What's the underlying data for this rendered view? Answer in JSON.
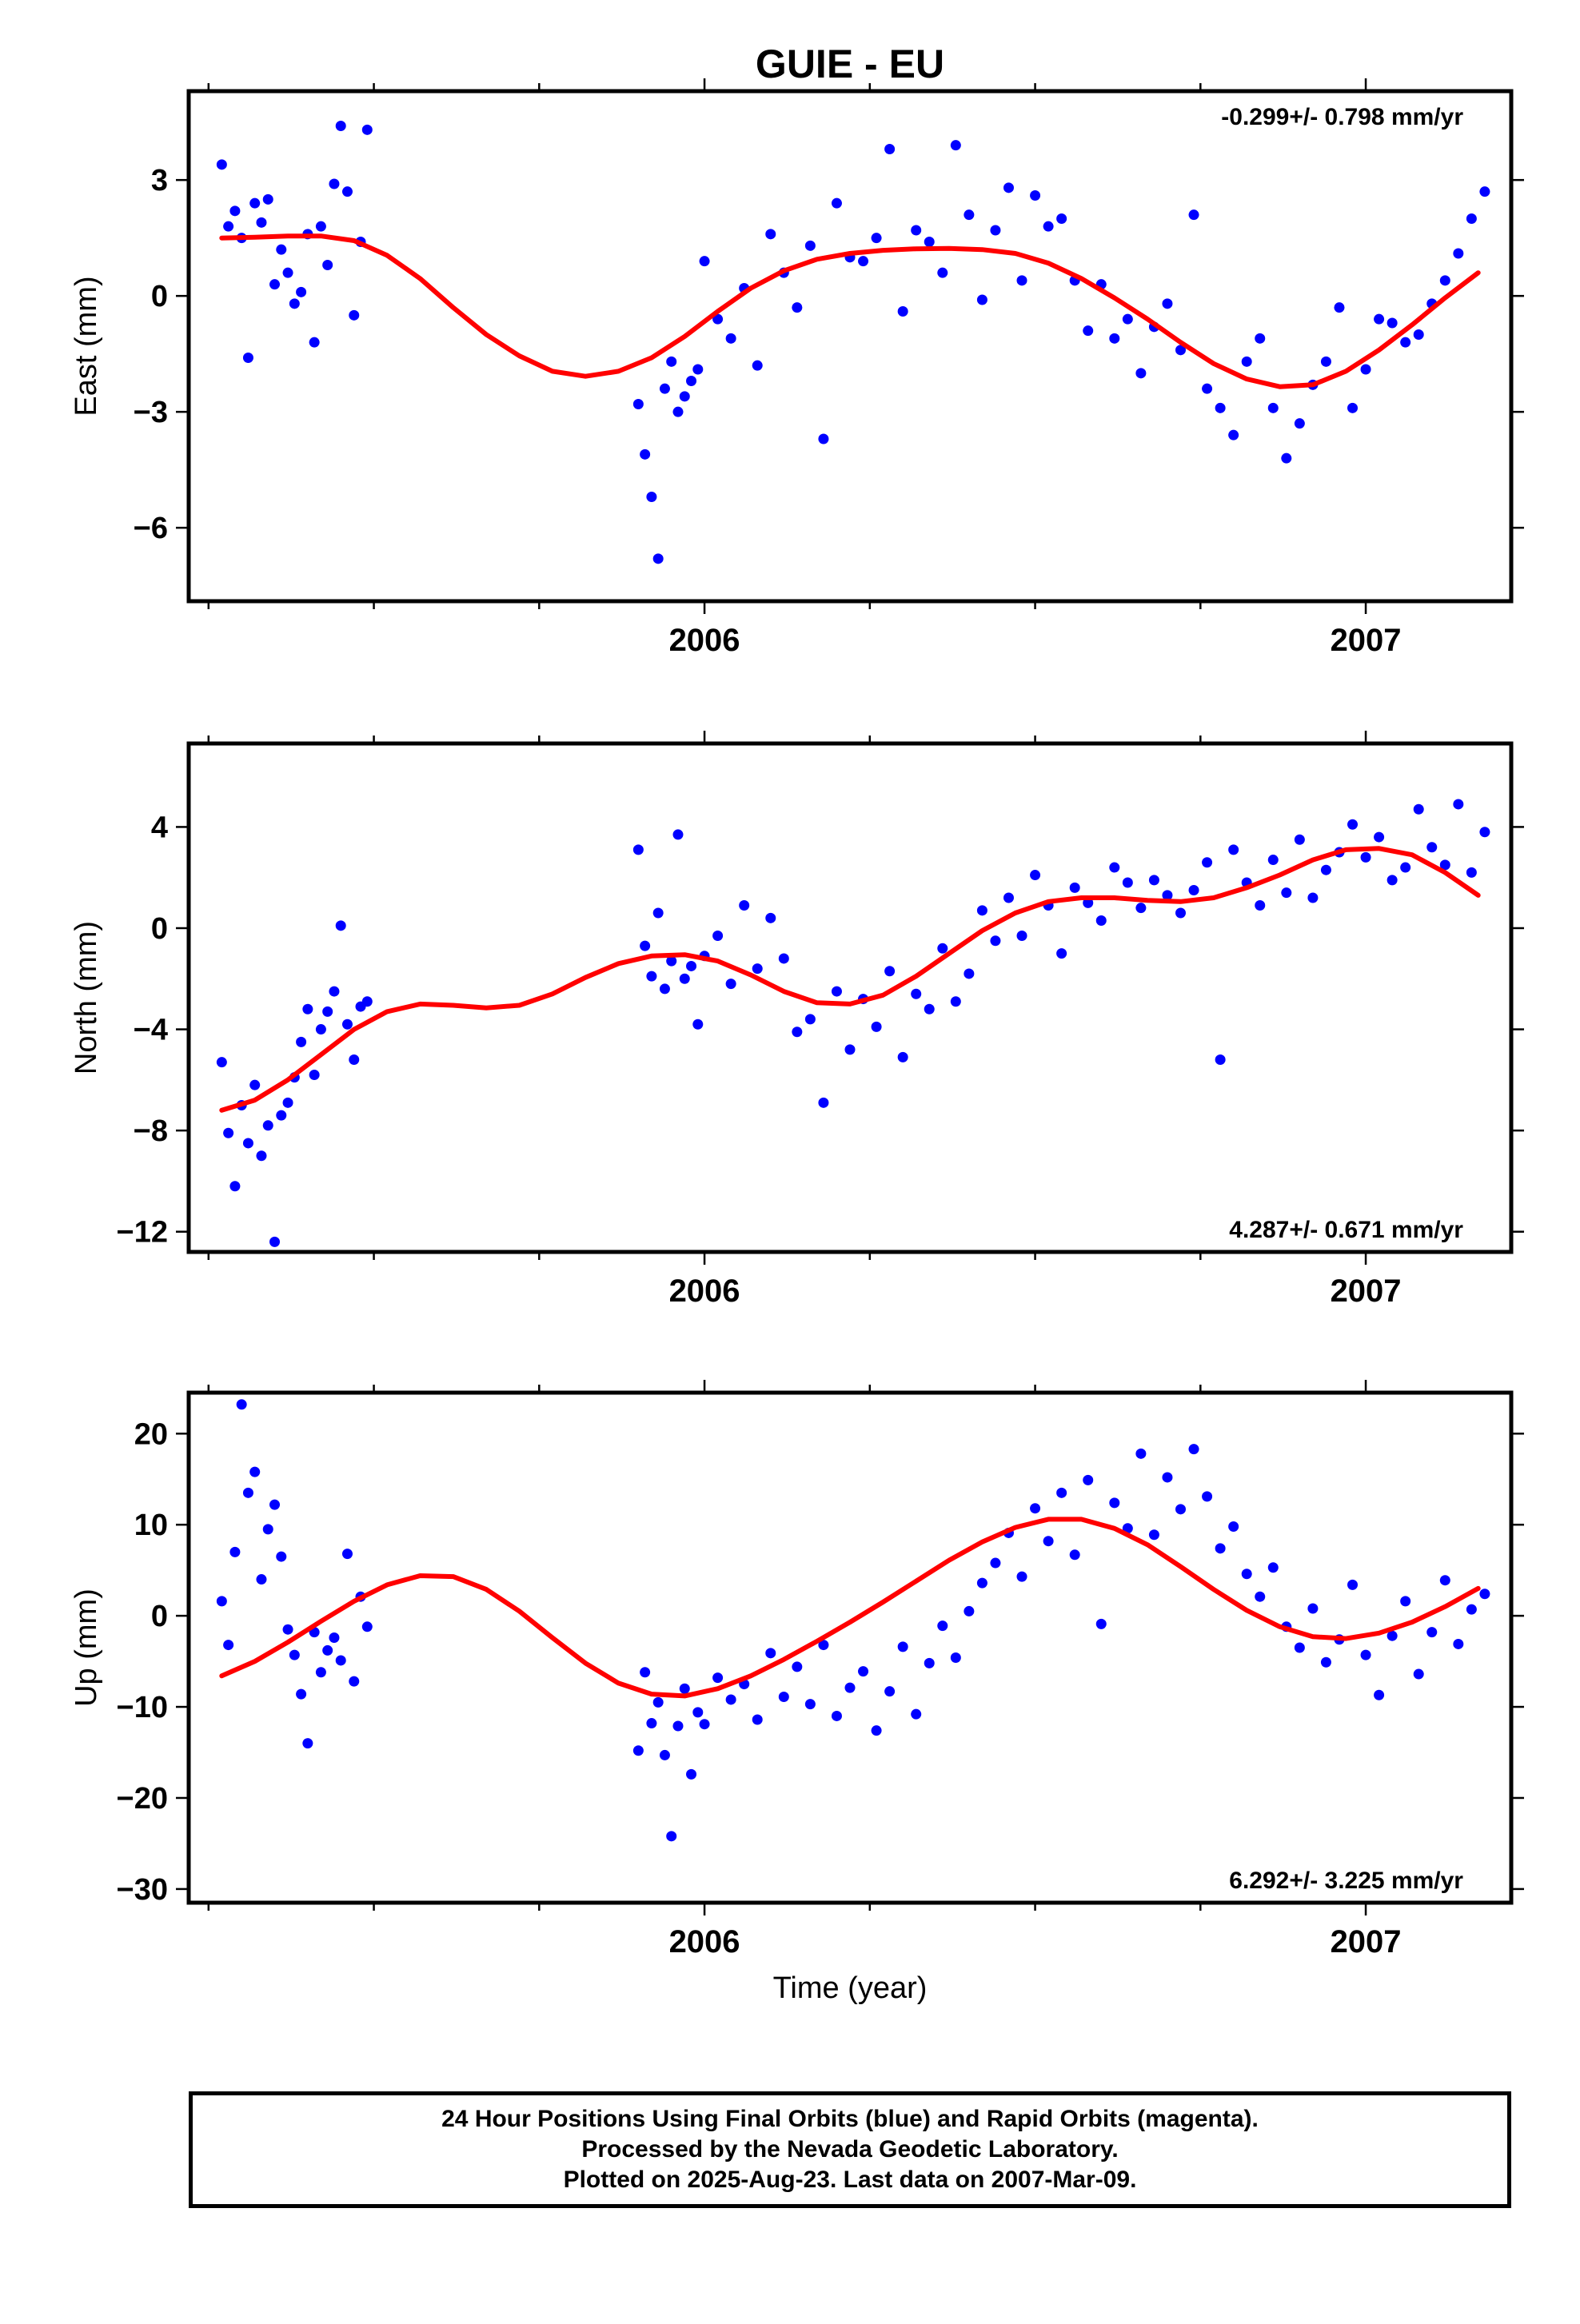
{
  "figure": {
    "title": "GUIE - EU",
    "xlabel": "Time (year)"
  },
  "footer": {
    "line1": "24 Hour Positions Using Final Orbits (blue) and Rapid Orbits (magenta).",
    "line2": "Processed by the Nevada Geodetic Laboratory.",
    "line3": "Plotted on 2025-Aug-23. Last data on 2007-Mar-09."
  },
  "colors": {
    "points": "#0000ff",
    "fit": "#ff0000",
    "axes": "#000000"
  },
  "chart_data": [
    {
      "type": "scatter",
      "panel": "east",
      "ylabel": "East (mm)",
      "rate_label": "-0.299+/- 0.798 mm/yr",
      "xlim": [
        2005.22,
        2007.22
      ],
      "ylim": [
        -7.9,
        5.3
      ],
      "yticks": [
        3,
        0,
        -3,
        -6
      ],
      "ytick_labels": [
        "3",
        "0",
        "−3",
        "−6"
      ],
      "xticks": [
        2006,
        2007
      ],
      "xtick_labels": [
        "2006",
        "2007"
      ],
      "series": [
        {
          "role": "daily positions (final orbits)",
          "x": [
            2005.27,
            2005.28,
            2005.29,
            2005.3,
            2005.31,
            2005.32,
            2005.33,
            2005.34,
            2005.35,
            2005.36,
            2005.37,
            2005.38,
            2005.39,
            2005.4,
            2005.41,
            2005.42,
            2005.43,
            2005.44,
            2005.45,
            2005.46,
            2005.47,
            2005.48,
            2005.49,
            2005.9,
            2005.91,
            2005.92,
            2005.93,
            2005.94,
            2005.95,
            2005.96,
            2005.97,
            2005.98,
            2005.99,
            2006.0,
            2006.02,
            2006.04,
            2006.06,
            2006.08,
            2006.1,
            2006.12,
            2006.14,
            2006.16,
            2006.18,
            2006.2,
            2006.22,
            2006.24,
            2006.26,
            2006.28,
            2006.3,
            2006.32,
            2006.34,
            2006.36,
            2006.38,
            2006.4,
            2006.42,
            2006.44,
            2006.46,
            2006.48,
            2006.5,
            2006.52,
            2006.54,
            2006.56,
            2006.58,
            2006.6,
            2006.62,
            2006.64,
            2006.66,
            2006.68,
            2006.7,
            2006.72,
            2006.74,
            2006.76,
            2006.78,
            2006.8,
            2006.82,
            2006.84,
            2006.86,
            2006.88,
            2006.9,
            2006.92,
            2006.94,
            2006.96,
            2006.98,
            2007.0,
            2007.02,
            2007.04,
            2007.06,
            2007.08,
            2007.1,
            2007.12,
            2007.14,
            2007.16,
            2007.18
          ],
          "y": [
            3.4,
            1.8,
            2.2,
            1.5,
            -1.6,
            2.4,
            1.9,
            2.5,
            0.3,
            1.2,
            0.6,
            -0.2,
            0.1,
            1.6,
            -1.2,
            1.8,
            0.8,
            2.9,
            4.4,
            2.7,
            -0.5,
            1.4,
            4.3,
            -2.8,
            -4.1,
            -5.2,
            -6.8,
            -2.4,
            -1.7,
            -3.0,
            -2.6,
            -2.2,
            -1.9,
            0.9,
            -0.6,
            -1.1,
            0.2,
            -1.8,
            1.6,
            0.6,
            -0.3,
            1.3,
            -3.7,
            2.4,
            1.0,
            0.9,
            1.5,
            3.8,
            -0.4,
            1.7,
            1.4,
            0.6,
            3.9,
            2.1,
            -0.1,
            1.7,
            2.8,
            0.4,
            2.6,
            1.8,
            2.0,
            0.4,
            -0.9,
            0.3,
            -1.1,
            -0.6,
            -2.0,
            -0.8,
            -0.2,
            -1.4,
            2.1,
            -2.4,
            -2.9,
            -3.6,
            -1.7,
            -1.1,
            -2.9,
            -4.2,
            -3.3,
            -2.3,
            -1.7,
            -0.3,
            -2.9,
            -1.9,
            -0.6,
            -0.7,
            -1.2,
            -1.0,
            -0.2,
            0.4,
            1.1,
            2.0,
            2.7
          ]
        },
        {
          "role": "fitted trend",
          "x": [
            2005.27,
            2005.32,
            2005.37,
            2005.42,
            2005.47,
            2005.52,
            2005.57,
            2005.62,
            2005.67,
            2005.72,
            2005.77,
            2005.82,
            2005.87,
            2005.92,
            2005.97,
            2006.02,
            2006.07,
            2006.12,
            2006.17,
            2006.22,
            2006.27,
            2006.32,
            2006.37,
            2006.42,
            2006.47,
            2006.52,
            2006.57,
            2006.62,
            2006.67,
            2006.72,
            2006.77,
            2006.82,
            2006.87,
            2006.92,
            2006.97,
            2007.02,
            2007.07,
            2007.12,
            2007.17
          ],
          "y": [
            1.5,
            1.52,
            1.55,
            1.55,
            1.43,
            1.05,
            0.45,
            -0.3,
            -1.0,
            -1.55,
            -1.95,
            -2.08,
            -1.95,
            -1.6,
            -1.05,
            -0.4,
            0.2,
            0.65,
            0.95,
            1.1,
            1.18,
            1.22,
            1.23,
            1.2,
            1.1,
            0.85,
            0.45,
            -0.05,
            -0.6,
            -1.2,
            -1.75,
            -2.15,
            -2.35,
            -2.3,
            -1.95,
            -1.4,
            -0.75,
            -0.05,
            0.6
          ]
        }
      ]
    },
    {
      "type": "scatter",
      "panel": "north",
      "ylabel": "North (mm)",
      "rate_label": "4.287+/- 0.671 mm/yr",
      "xlim": [
        2005.22,
        2007.22
      ],
      "ylim": [
        -12.8,
        7.3
      ],
      "yticks": [
        4,
        0,
        -4,
        -8,
        -12
      ],
      "ytick_labels": [
        "4",
        "0",
        "−4",
        "−8",
        "−12"
      ],
      "xticks": [
        2006,
        2007
      ],
      "xtick_labels": [
        "2006",
        "2007"
      ],
      "series": [
        {
          "role": "daily positions (final orbits)",
          "x": [
            2005.27,
            2005.28,
            2005.29,
            2005.3,
            2005.31,
            2005.32,
            2005.33,
            2005.34,
            2005.35,
            2005.36,
            2005.37,
            2005.38,
            2005.39,
            2005.4,
            2005.41,
            2005.42,
            2005.43,
            2005.44,
            2005.45,
            2005.46,
            2005.47,
            2005.48,
            2005.49,
            2005.9,
            2005.91,
            2005.92,
            2005.93,
            2005.94,
            2005.95,
            2005.96,
            2005.97,
            2005.98,
            2005.99,
            2006.0,
            2006.02,
            2006.04,
            2006.06,
            2006.08,
            2006.1,
            2006.12,
            2006.14,
            2006.16,
            2006.18,
            2006.2,
            2006.22,
            2006.24,
            2006.26,
            2006.28,
            2006.3,
            2006.32,
            2006.34,
            2006.36,
            2006.38,
            2006.4,
            2006.42,
            2006.44,
            2006.46,
            2006.48,
            2006.5,
            2006.52,
            2006.54,
            2006.56,
            2006.58,
            2006.6,
            2006.62,
            2006.64,
            2006.66,
            2006.68,
            2006.7,
            2006.72,
            2006.74,
            2006.76,
            2006.78,
            2006.8,
            2006.82,
            2006.84,
            2006.86,
            2006.88,
            2006.9,
            2006.92,
            2006.94,
            2006.96,
            2006.98,
            2007.0,
            2007.02,
            2007.04,
            2007.06,
            2007.08,
            2007.1,
            2007.12,
            2007.14,
            2007.16,
            2007.18
          ],
          "y": [
            -5.3,
            -8.1,
            -10.2,
            -7.0,
            -8.5,
            -6.2,
            -9.0,
            -7.8,
            -12.4,
            -7.4,
            -6.9,
            -5.9,
            -4.5,
            -3.2,
            -5.8,
            -4.0,
            -3.3,
            -2.5,
            0.1,
            -3.8,
            -5.2,
            -3.1,
            -2.9,
            3.1,
            -0.7,
            -1.9,
            0.6,
            -2.4,
            -1.3,
            3.7,
            -2.0,
            -1.5,
            -3.8,
            -1.1,
            -0.3,
            -2.2,
            0.9,
            -1.6,
            0.4,
            -1.2,
            -4.1,
            -3.6,
            -6.9,
            -2.5,
            -4.8,
            -2.8,
            -3.9,
            -1.7,
            -5.1,
            -2.6,
            -3.2,
            -0.8,
            -2.9,
            -1.8,
            0.7,
            -0.5,
            1.2,
            -0.3,
            2.1,
            0.9,
            -1.0,
            1.6,
            1.0,
            0.3,
            2.4,
            1.8,
            0.8,
            1.9,
            1.3,
            0.6,
            1.5,
            2.6,
            -5.2,
            3.1,
            1.8,
            0.9,
            2.7,
            1.4,
            3.5,
            1.2,
            2.3,
            3.0,
            4.1,
            2.8,
            3.6,
            1.9,
            2.4,
            4.7,
            3.2,
            2.5,
            4.9,
            2.2,
            3.8
          ]
        },
        {
          "role": "fitted trend",
          "x": [
            2005.27,
            2005.32,
            2005.37,
            2005.42,
            2005.47,
            2005.52,
            2005.57,
            2005.62,
            2005.67,
            2005.72,
            2005.77,
            2005.82,
            2005.87,
            2005.92,
            2005.97,
            2006.02,
            2006.07,
            2006.12,
            2006.17,
            2006.22,
            2006.27,
            2006.32,
            2006.37,
            2006.42,
            2006.47,
            2006.52,
            2006.57,
            2006.62,
            2006.67,
            2006.72,
            2006.77,
            2006.82,
            2006.87,
            2006.92,
            2006.97,
            2007.02,
            2007.07,
            2007.12,
            2007.17
          ],
          "y": [
            -7.2,
            -6.8,
            -6.0,
            -5.0,
            -4.0,
            -3.3,
            -3.0,
            -3.05,
            -3.15,
            -3.05,
            -2.6,
            -1.95,
            -1.4,
            -1.1,
            -1.05,
            -1.3,
            -1.85,
            -2.5,
            -2.95,
            -3.0,
            -2.65,
            -1.9,
            -1.0,
            -0.1,
            0.6,
            1.05,
            1.2,
            1.2,
            1.1,
            1.05,
            1.2,
            1.6,
            2.1,
            2.7,
            3.1,
            3.15,
            2.9,
            2.2,
            1.3
          ]
        }
      ]
    },
    {
      "type": "scatter",
      "panel": "up",
      "ylabel": "Up (mm)",
      "rate_label": "6.292+/- 3.225 mm/yr",
      "xlim": [
        2005.22,
        2007.22
      ],
      "ylim": [
        -31.5,
        24.5
      ],
      "yticks": [
        20,
        10,
        0,
        -10,
        -20,
        -30
      ],
      "ytick_labels": [
        "20",
        "10",
        "0",
        "−10",
        "−20",
        "−30"
      ],
      "xticks": [
        2006,
        2007
      ],
      "xtick_labels": [
        "2006",
        "2007"
      ],
      "series": [
        {
          "role": "daily positions (final orbits)",
          "x": [
            2005.27,
            2005.28,
            2005.29,
            2005.3,
            2005.31,
            2005.32,
            2005.33,
            2005.34,
            2005.35,
            2005.36,
            2005.37,
            2005.38,
            2005.39,
            2005.4,
            2005.41,
            2005.42,
            2005.43,
            2005.44,
            2005.45,
            2005.46,
            2005.47,
            2005.48,
            2005.49,
            2005.9,
            2005.91,
            2005.92,
            2005.93,
            2005.94,
            2005.95,
            2005.96,
            2005.97,
            2005.98,
            2005.99,
            2006.0,
            2006.02,
            2006.04,
            2006.06,
            2006.08,
            2006.1,
            2006.12,
            2006.14,
            2006.16,
            2006.18,
            2006.2,
            2006.22,
            2006.24,
            2006.26,
            2006.28,
            2006.3,
            2006.32,
            2006.34,
            2006.36,
            2006.38,
            2006.4,
            2006.42,
            2006.44,
            2006.46,
            2006.48,
            2006.5,
            2006.52,
            2006.54,
            2006.56,
            2006.58,
            2006.6,
            2006.62,
            2006.64,
            2006.66,
            2006.68,
            2006.7,
            2006.72,
            2006.74,
            2006.76,
            2006.78,
            2006.8,
            2006.82,
            2006.84,
            2006.86,
            2006.88,
            2006.9,
            2006.92,
            2006.94,
            2006.96,
            2006.98,
            2007.0,
            2007.02,
            2007.04,
            2007.06,
            2007.08,
            2007.1,
            2007.12,
            2007.14,
            2007.16,
            2007.18
          ],
          "y": [
            1.6,
            -3.2,
            7.0,
            23.2,
            13.5,
            15.8,
            4.0,
            9.5,
            12.2,
            6.5,
            -1.5,
            -4.3,
            -8.6,
            -14.0,
            -1.8,
            -6.2,
            -3.8,
            -2.4,
            -4.9,
            6.8,
            -7.2,
            2.1,
            -1.2,
            -14.8,
            -6.2,
            -11.8,
            -9.5,
            -15.3,
            -24.2,
            -12.1,
            -8.0,
            -17.4,
            -10.6,
            -11.9,
            -6.8,
            -9.2,
            -7.5,
            -11.4,
            -4.1,
            -8.9,
            -5.6,
            -9.7,
            -3.2,
            -11.0,
            -7.9,
            -6.1,
            -12.6,
            -8.3,
            -3.4,
            -10.8,
            -5.2,
            -1.1,
            -4.6,
            0.5,
            3.6,
            5.8,
            9.1,
            4.3,
            11.8,
            8.2,
            13.5,
            6.7,
            14.9,
            -0.9,
            12.4,
            9.6,
            17.8,
            8.9,
            15.2,
            11.7,
            18.3,
            13.1,
            7.4,
            9.8,
            4.6,
            2.1,
            5.3,
            -1.2,
            -3.5,
            0.8,
            -5.1,
            -2.6,
            3.4,
            -4.3,
            -8.7,
            -2.2,
            1.6,
            -6.4,
            -1.8,
            3.9,
            -3.1,
            0.7,
            2.4
          ]
        },
        {
          "role": "fitted trend",
          "x": [
            2005.27,
            2005.32,
            2005.37,
            2005.42,
            2005.47,
            2005.52,
            2005.57,
            2005.62,
            2005.67,
            2005.72,
            2005.77,
            2005.82,
            2005.87,
            2005.92,
            2005.97,
            2006.02,
            2006.07,
            2006.12,
            2006.17,
            2006.22,
            2006.27,
            2006.32,
            2006.37,
            2006.42,
            2006.47,
            2006.52,
            2006.57,
            2006.62,
            2006.67,
            2006.72,
            2006.77,
            2006.82,
            2006.87,
            2006.92,
            2006.97,
            2007.02,
            2007.07,
            2007.12,
            2007.17
          ],
          "y": [
            -6.6,
            -5.0,
            -2.9,
            -0.6,
            1.6,
            3.4,
            4.4,
            4.3,
            2.9,
            0.5,
            -2.4,
            -5.2,
            -7.4,
            -8.6,
            -8.8,
            -8.0,
            -6.6,
            -4.8,
            -2.8,
            -0.7,
            1.5,
            3.8,
            6.1,
            8.1,
            9.7,
            10.6,
            10.6,
            9.6,
            7.8,
            5.4,
            2.9,
            0.6,
            -1.2,
            -2.3,
            -2.5,
            -1.9,
            -0.7,
            1.0,
            3.0
          ]
        }
      ]
    }
  ]
}
